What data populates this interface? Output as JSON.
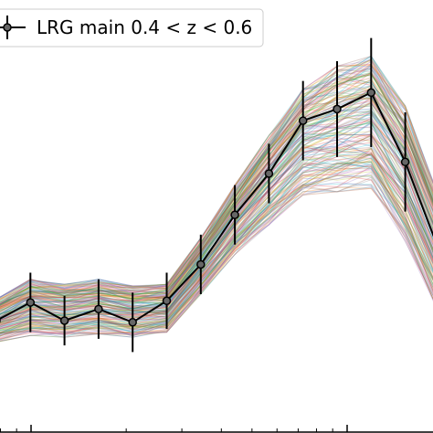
{
  "chart_data": {
    "type": "line",
    "x": [
      1,
      2,
      3,
      4,
      5,
      6,
      7,
      8,
      9,
      10,
      11,
      12,
      13,
      14
    ],
    "series": [
      {
        "name": "LRG main 0.4 < z < 0.6",
        "values": [
          0.9,
          1.45,
          0.9,
          1.25,
          0.85,
          1.5,
          2.6,
          4.1,
          5.35,
          6.95,
          7.3,
          7.8,
          5.7,
          3.0
        ],
        "yerr": [
          0.9,
          0.9,
          0.75,
          0.9,
          0.9,
          0.85,
          0.9,
          0.9,
          0.9,
          1.2,
          1.45,
          1.65,
          1.5,
          1.2
        ],
        "color": "#000000"
      }
    ],
    "model_envelope": {
      "description_free": true,
      "lower": [
        0.25,
        0.45,
        0.4,
        0.5,
        0.4,
        0.55,
        1.7,
        2.9,
        3.8,
        4.7,
        4.8,
        4.9,
        3.3,
        1.1
      ],
      "upper": [
        1.55,
        2.15,
        2.0,
        2.15,
        1.95,
        2.0,
        3.4,
        5.0,
        6.5,
        7.9,
        8.6,
        8.9,
        7.4,
        4.6
      ]
    },
    "xlabel": "",
    "ylabel": "",
    "ylim": [
      -2.5,
      10.6
    ],
    "xscale": "log",
    "grid": false,
    "legend_position": "top-left"
  }
}
